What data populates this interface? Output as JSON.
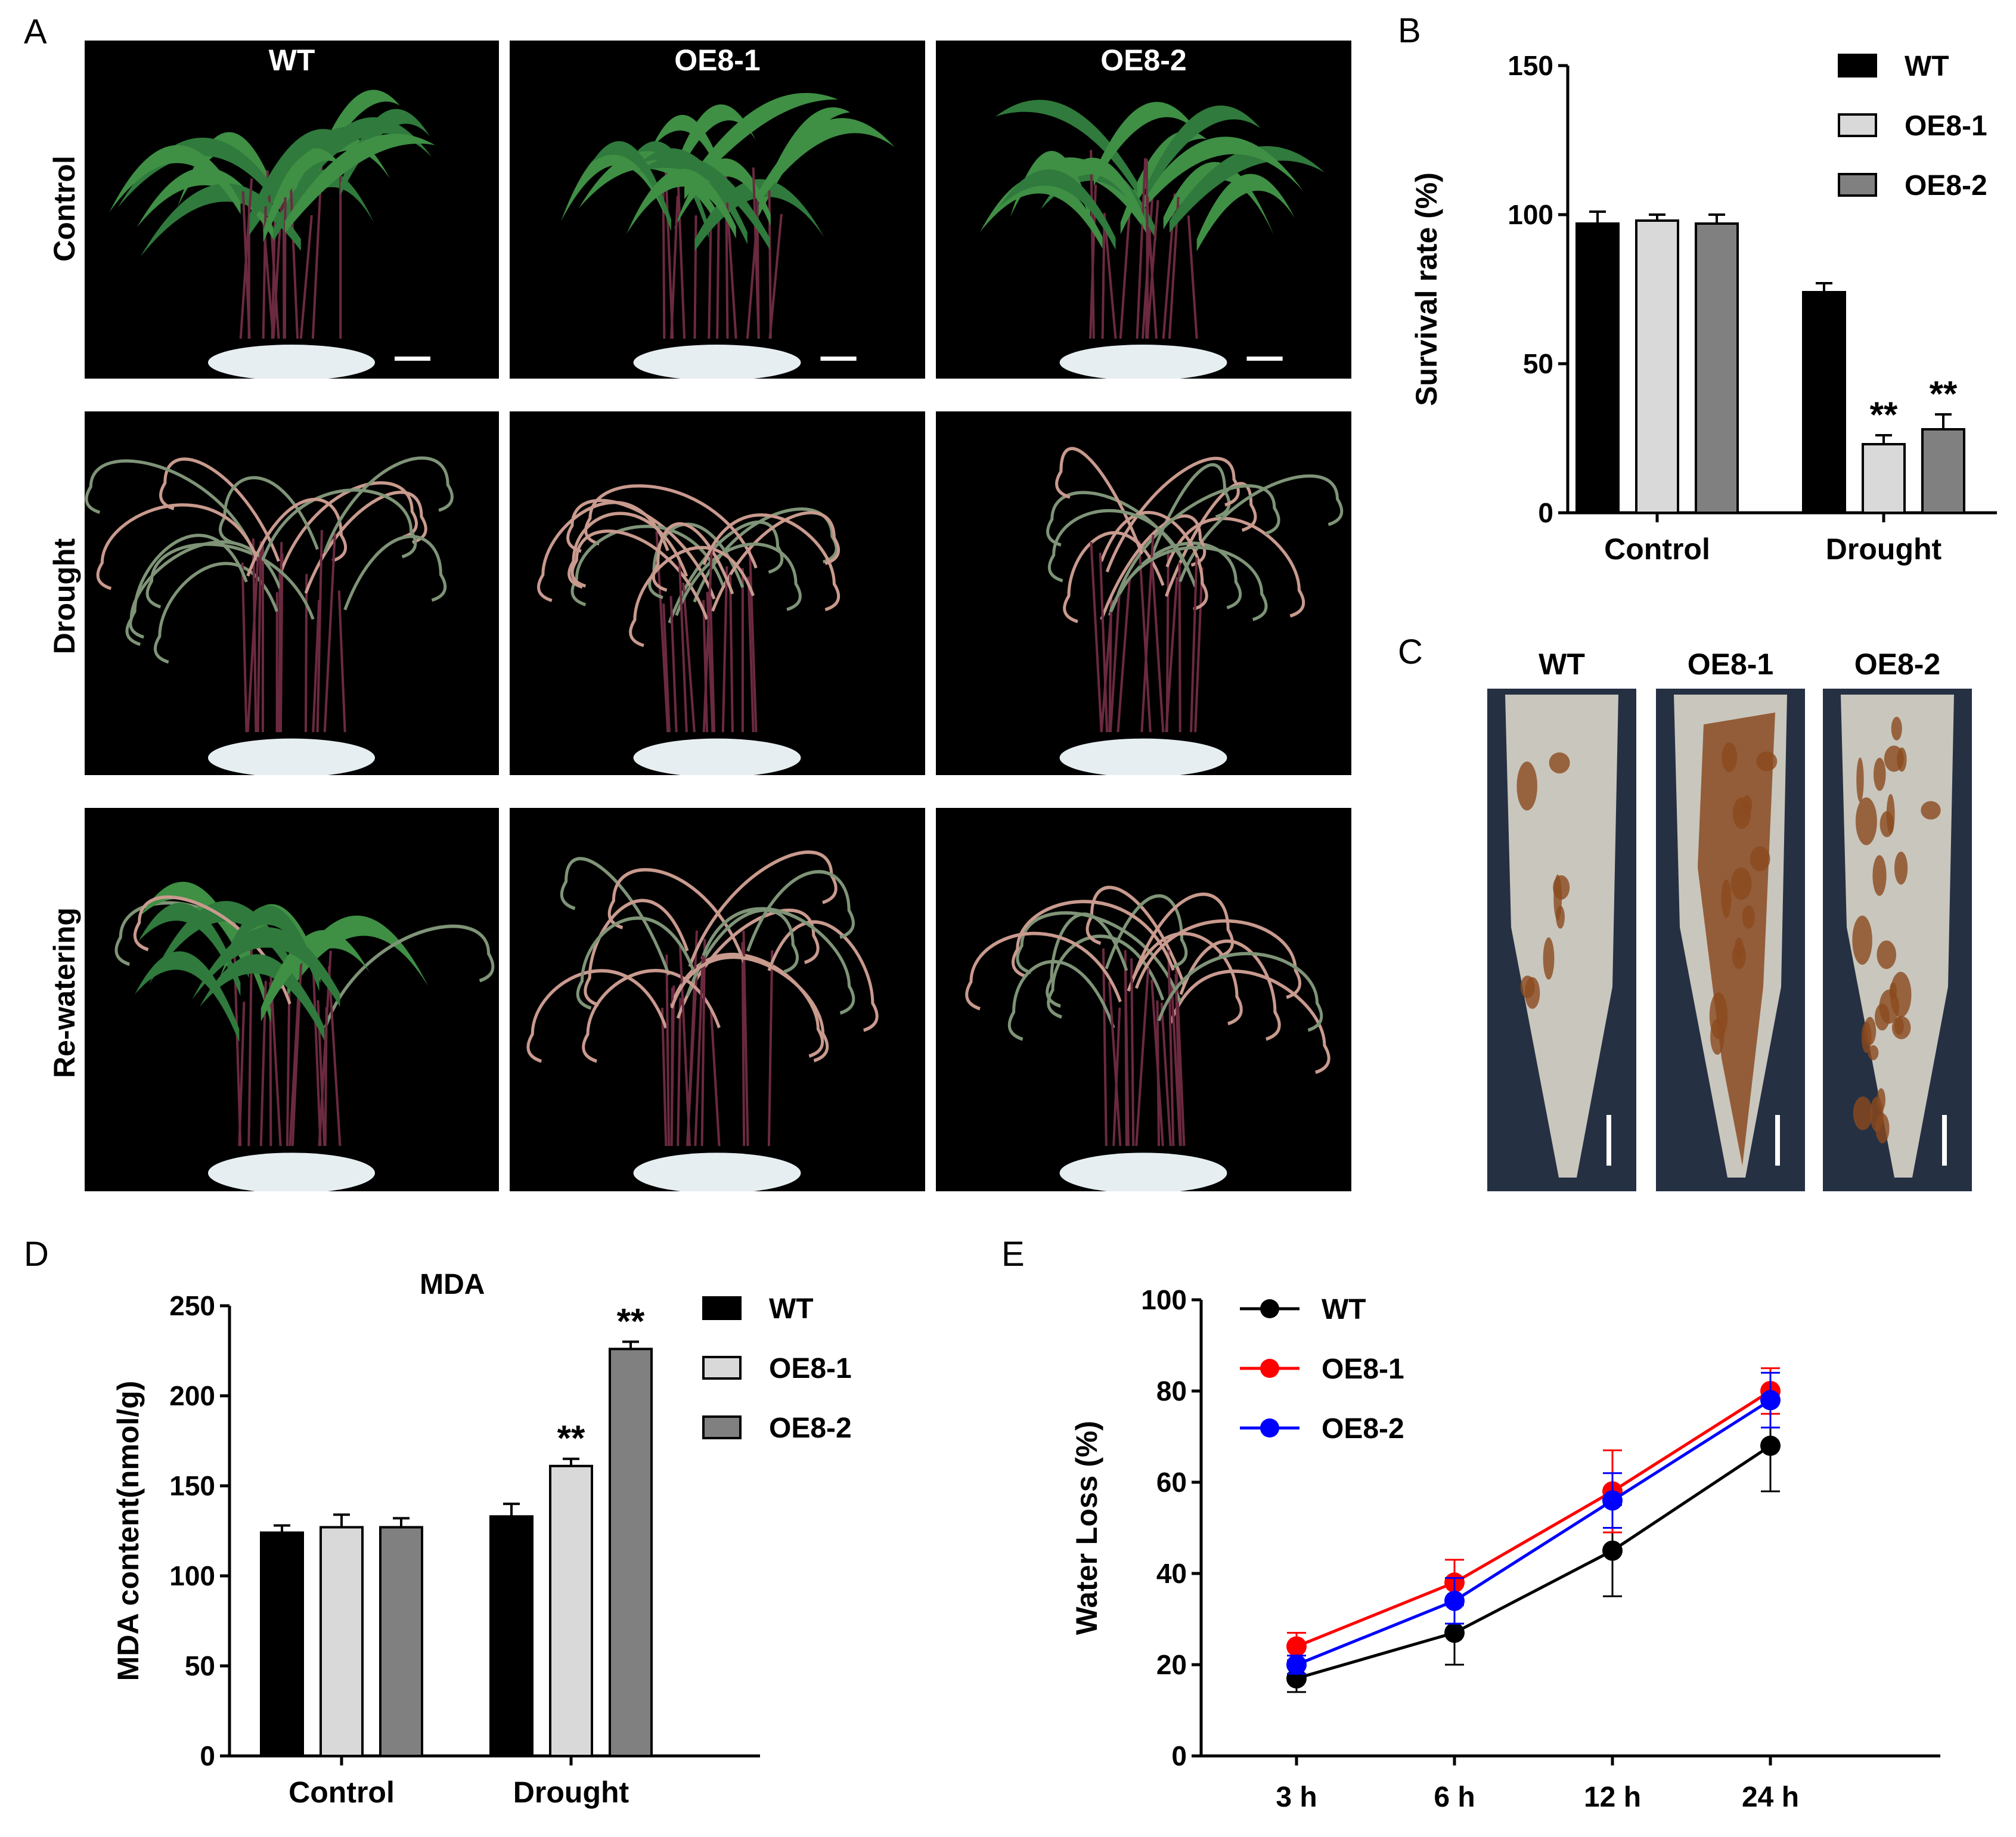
{
  "panels": {
    "A": "A",
    "B": "B",
    "C": "C",
    "D": "D",
    "E": "E"
  },
  "panel_a": {
    "columns": [
      "WT",
      "OE8-1",
      "OE8-2"
    ],
    "rows": [
      "Control",
      "Drought",
      "Re-watering"
    ]
  },
  "panel_c": {
    "columns": [
      "WT",
      "OE8-1",
      "OE8-2"
    ]
  },
  "colors": {
    "black_bar": "#000000",
    "light_bar": "#d9d9d9",
    "gray_bar": "#808080",
    "wt_line": "#000000",
    "oe81_line": "#ff0000",
    "oe82_line": "#0000ff"
  },
  "chart_data": [
    {
      "id": "B",
      "type": "bar",
      "title": "",
      "ylabel": "Survival rate (%)",
      "xlabel": "",
      "ylim": [
        0,
        150
      ],
      "yticks": [
        "0",
        "50",
        "100",
        "150"
      ],
      "categories": [
        "Control",
        "Drought"
      ],
      "series": [
        {
          "name": "WT",
          "values": [
            97,
            74
          ],
          "errors": [
            4,
            3
          ]
        },
        {
          "name": "OE8-1",
          "values": [
            98,
            23
          ],
          "errors": [
            2,
            3
          ]
        },
        {
          "name": "OE8-2",
          "values": [
            97,
            28
          ],
          "errors": [
            3,
            5
          ]
        }
      ],
      "annotations": [
        {
          "category": "Drought",
          "series": "OE8-1",
          "text": "**"
        },
        {
          "category": "Drought",
          "series": "OE8-2",
          "text": "**"
        }
      ],
      "legend": "top-right"
    },
    {
      "id": "D",
      "type": "bar",
      "title": "MDA",
      "ylabel": "MDA content(nmol/g)",
      "xlabel": "",
      "ylim": [
        0,
        250
      ],
      "yticks": [
        "0",
        "50",
        "100",
        "150",
        "200",
        "250"
      ],
      "categories": [
        "Control",
        "Drought"
      ],
      "series": [
        {
          "name": "WT",
          "values": [
            124,
            133
          ],
          "errors": [
            4,
            7
          ]
        },
        {
          "name": "OE8-1",
          "values": [
            127,
            161
          ],
          "errors": [
            7,
            4
          ]
        },
        {
          "name": "OE8-2",
          "values": [
            127,
            226
          ],
          "errors": [
            5,
            4
          ]
        }
      ],
      "annotations": [
        {
          "category": "Drought",
          "series": "OE8-1",
          "text": "**"
        },
        {
          "category": "Drought",
          "series": "OE8-2",
          "text": "**"
        }
      ],
      "legend": "top-right"
    },
    {
      "id": "E",
      "type": "line",
      "title": "",
      "ylabel": "Water Loss (%)",
      "xlabel": "",
      "ylim": [
        0,
        100
      ],
      "yticks": [
        "0",
        "20",
        "40",
        "60",
        "80",
        "100"
      ],
      "categories": [
        "3 h",
        "6 h",
        "12 h",
        "24 h"
      ],
      "series": [
        {
          "name": "WT",
          "values": [
            17,
            27,
            45,
            68
          ],
          "errors": [
            3,
            7,
            10,
            10
          ]
        },
        {
          "name": "OE8-1",
          "values": [
            24,
            38,
            58,
            80
          ],
          "errors": [
            3,
            5,
            9,
            5
          ]
        },
        {
          "name": "OE8-2",
          "values": [
            20,
            34,
            56,
            78
          ],
          "errors": [
            2,
            5,
            6,
            6
          ]
        }
      ],
      "legend": "top-left"
    }
  ]
}
